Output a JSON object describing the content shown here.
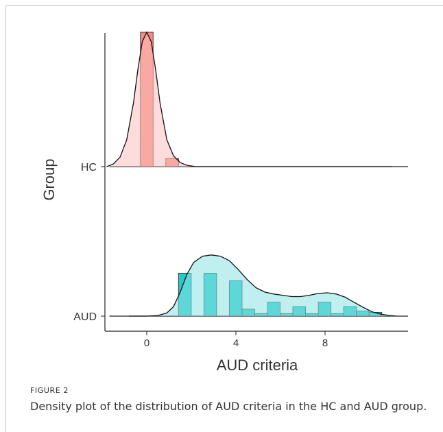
{
  "figure": {
    "label": "FIGURE 2",
    "caption": "Density plot of the distribution of AUD criteria in the HC and AUD group."
  },
  "chart_data": {
    "type": "area",
    "xlabel": "AUD criteria",
    "ylabel": "Group",
    "xlim": [
      -1.8,
      11.6
    ],
    "x_ticks": [
      0,
      4,
      8
    ],
    "y_categories": [
      "AUD",
      "HC"
    ],
    "grid": false,
    "colors": {
      "HC": "#f8766d",
      "AUD": "#00bfc4"
    },
    "series": [
      {
        "name": "HC",
        "histogram": {
          "bin_width": 0.57,
          "centers": [
            0.0,
            0.57,
            1.14
          ],
          "heights": [
            1.0,
            0.0,
            0.06
          ]
        },
        "density": {
          "x": [
            -1.8,
            -1.5,
            -1.2,
            -0.9,
            -0.6,
            -0.4,
            -0.2,
            0.0,
            0.2,
            0.4,
            0.6,
            0.9,
            1.2,
            1.5,
            1.8,
            2.2,
            2.6,
            11.0
          ],
          "y": [
            0.0,
            0.02,
            0.07,
            0.2,
            0.47,
            0.72,
            0.93,
            1.0,
            0.93,
            0.72,
            0.47,
            0.2,
            0.08,
            0.03,
            0.01,
            0.0,
            0.0,
            0.0
          ]
        }
      },
      {
        "name": "AUD",
        "histogram": {
          "bin_width": 0.57,
          "centers": [
            1.71,
            2.28,
            2.85,
            3.42,
            3.99,
            4.56,
            5.13,
            5.7,
            6.27,
            6.84,
            7.41,
            7.98,
            8.55,
            9.12,
            9.69,
            10.26
          ],
          "heights": [
            0.68,
            0.0,
            0.68,
            0.0,
            0.56,
            0.11,
            0.04,
            0.22,
            0.04,
            0.15,
            0.04,
            0.22,
            0.04,
            0.15,
            0.08,
            0.06
          ]
        },
        "density": {
          "x": [
            -0.8,
            0.0,
            0.5,
            0.9,
            1.2,
            1.5,
            1.8,
            2.1,
            2.5,
            2.9,
            3.3,
            3.7,
            4.1,
            4.5,
            4.9,
            5.3,
            5.7,
            6.1,
            6.5,
            6.9,
            7.3,
            7.7,
            8.1,
            8.5,
            8.9,
            9.3,
            9.7,
            10.1,
            10.5,
            10.9,
            11.2
          ],
          "y": [
            0.0,
            0.0,
            0.01,
            0.05,
            0.15,
            0.38,
            0.66,
            0.85,
            0.95,
            0.97,
            0.95,
            0.88,
            0.74,
            0.58,
            0.45,
            0.38,
            0.35,
            0.33,
            0.31,
            0.31,
            0.33,
            0.36,
            0.37,
            0.35,
            0.3,
            0.22,
            0.14,
            0.07,
            0.03,
            0.01,
            0.0
          ]
        }
      }
    ]
  }
}
